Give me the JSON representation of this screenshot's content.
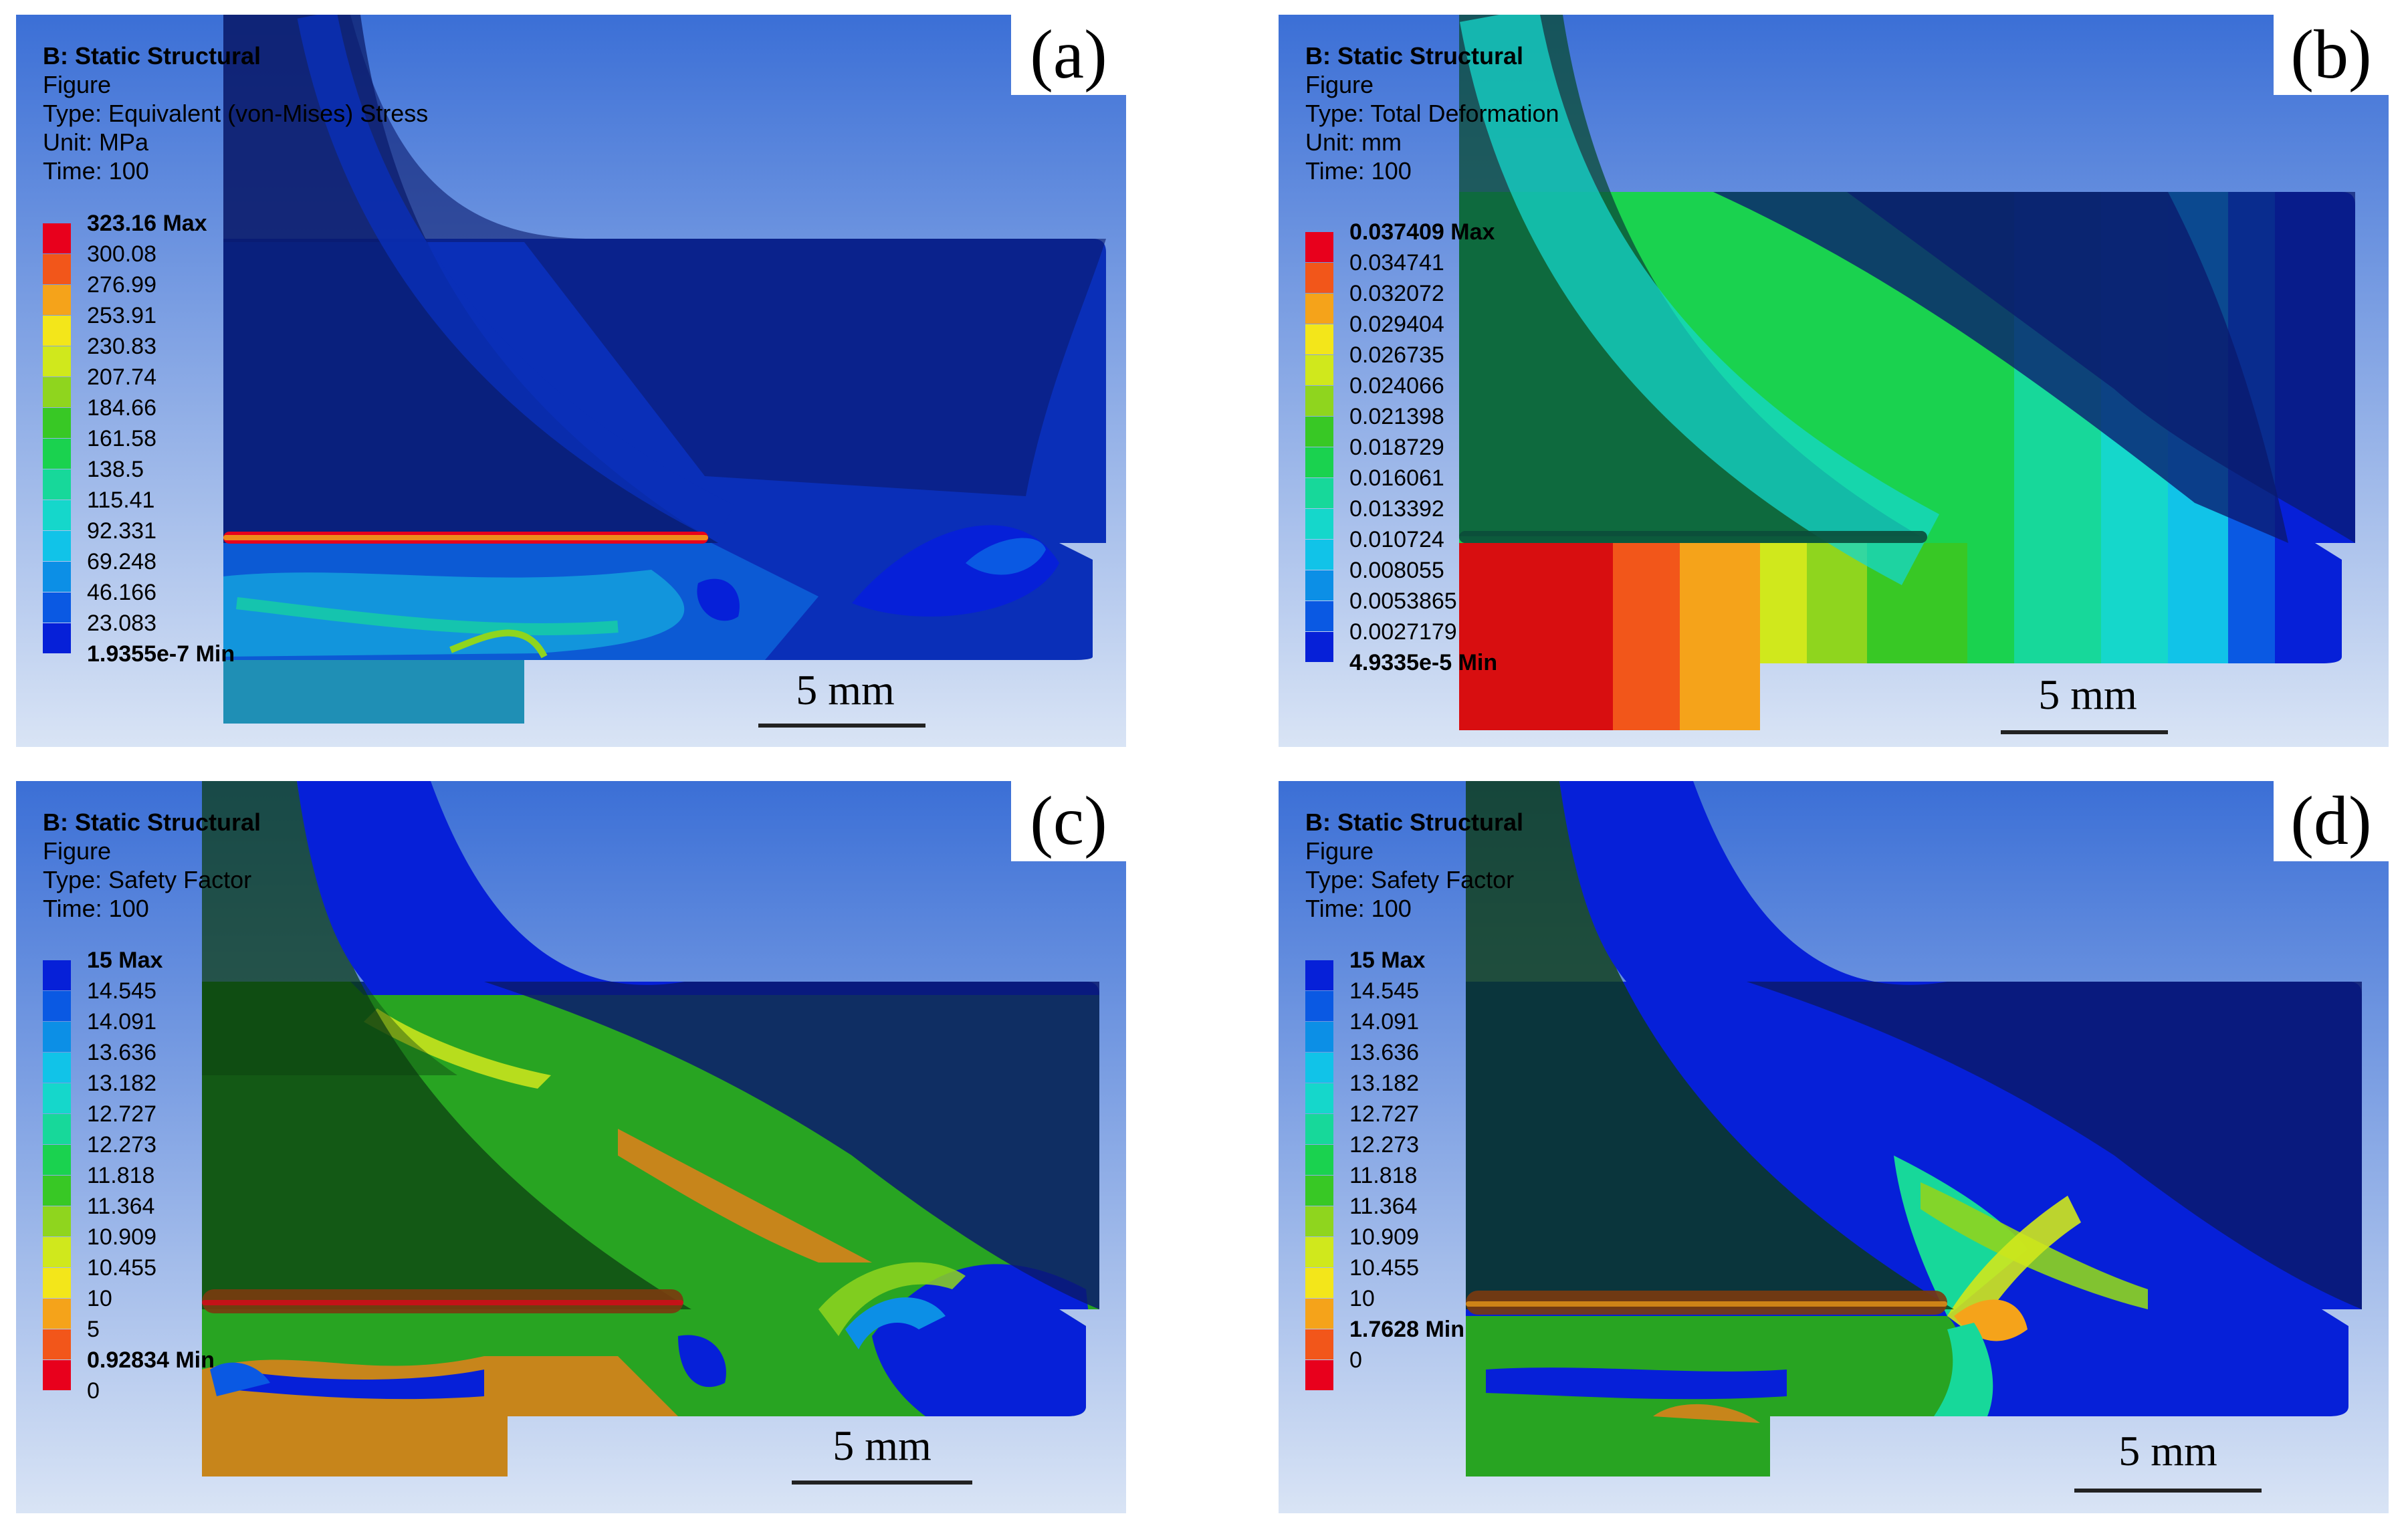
{
  "panels": [
    {
      "id": "a",
      "label": "(a)",
      "system": "B: Static Structural",
      "figure": "Figure",
      "type": "Type: Equivalent (von-Mises) Stress",
      "unit": "Unit: MPa",
      "time": "Time: 100",
      "scale": "5 mm",
      "legend": [
        {
          "text": "323.16 Max",
          "color": "#e8001c"
        },
        {
          "text": "300.08",
          "color": "#f2561a"
        },
        {
          "text": "276.99",
          "color": "#f5a31a"
        },
        {
          "text": "253.91",
          "color": "#f3e61a"
        },
        {
          "text": "230.83",
          "color": "#d0e81c"
        },
        {
          "text": "207.74",
          "color": "#8fd51e"
        },
        {
          "text": "184.66",
          "color": "#38c825"
        },
        {
          "text": "161.58",
          "color": "#1ad24f"
        },
        {
          "text": "138.5",
          "color": "#17d89a"
        },
        {
          "text": "115.41",
          "color": "#15d7cb"
        },
        {
          "text": "92.331",
          "color": "#11c3e8"
        },
        {
          "text": "69.248",
          "color": "#0c8fe6"
        },
        {
          "text": "46.166",
          "color": "#0a59e3"
        },
        {
          "text": "23.083",
          "color": "#0620d8"
        },
        {
          "text": "1.9355e-7 Min",
          "color": null
        }
      ]
    },
    {
      "id": "b",
      "label": "(b)",
      "system": "B: Static Structural",
      "figure": "Figure",
      "type": "Type: Total Deformation",
      "unit": "Unit: mm",
      "time": "Time: 100",
      "scale": "5 mm",
      "legend": [
        {
          "text": "0.037409 Max",
          "color": "#e8001c"
        },
        {
          "text": "0.034741",
          "color": "#f2561a"
        },
        {
          "text": "0.032072",
          "color": "#f5a31a"
        },
        {
          "text": "0.029404",
          "color": "#f3e61a"
        },
        {
          "text": "0.026735",
          "color": "#d0e81c"
        },
        {
          "text": "0.024066",
          "color": "#8fd51e"
        },
        {
          "text": "0.021398",
          "color": "#38c825"
        },
        {
          "text": "0.018729",
          "color": "#1ad24f"
        },
        {
          "text": "0.016061",
          "color": "#17d89a"
        },
        {
          "text": "0.013392",
          "color": "#15d7cb"
        },
        {
          "text": "0.010724",
          "color": "#11c3e8"
        },
        {
          "text": "0.008055",
          "color": "#0c8fe6"
        },
        {
          "text": "0.0053865",
          "color": "#0a59e3"
        },
        {
          "text": "0.0027179",
          "color": "#0620d8"
        },
        {
          "text": "4.9335e-5 Min",
          "color": null
        }
      ]
    },
    {
      "id": "c",
      "label": "(c)",
      "system": "B: Static Structural",
      "figure": "Figure",
      "type": "Type: Safety Factor",
      "time": "Time: 100",
      "scale": "5 mm",
      "legend": [
        {
          "text": "15 Max",
          "color": "#0620d8"
        },
        {
          "text": "14.545",
          "color": "#0a59e3"
        },
        {
          "text": "14.091",
          "color": "#0c8fe6"
        },
        {
          "text": "13.636",
          "color": "#11c3e8"
        },
        {
          "text": "13.182",
          "color": "#15d7cb"
        },
        {
          "text": "12.727",
          "color": "#17d89a"
        },
        {
          "text": "12.273",
          "color": "#1ad24f"
        },
        {
          "text": "11.818",
          "color": "#38c825"
        },
        {
          "text": "11.364",
          "color": "#8fd51e"
        },
        {
          "text": "10.909",
          "color": "#d0e81c"
        },
        {
          "text": "10.455",
          "color": "#f3e61a"
        },
        {
          "text": "10",
          "color": "#f5a31a"
        },
        {
          "text": "5",
          "color": "#f2561a"
        },
        {
          "text": "0.92834 Min",
          "color": "#e8001c"
        },
        {
          "text": "0",
          "color": null
        }
      ]
    },
    {
      "id": "d",
      "label": "(d)",
      "system": "B: Static Structural",
      "figure": "Figure",
      "type": "Type: Safety Factor",
      "time": "Time: 100",
      "scale": "5 mm",
      "legend": [
        {
          "text": "15 Max",
          "color": "#0620d8"
        },
        {
          "text": "14.545",
          "color": "#0a59e3"
        },
        {
          "text": "14.091",
          "color": "#0c8fe6"
        },
        {
          "text": "13.636",
          "color": "#11c3e8"
        },
        {
          "text": "13.182",
          "color": "#15d7cb"
        },
        {
          "text": "12.727",
          "color": "#17d89a"
        },
        {
          "text": "12.273",
          "color": "#1ad24f"
        },
        {
          "text": "11.818",
          "color": "#38c825"
        },
        {
          "text": "11.364",
          "color": "#8fd51e"
        },
        {
          "text": "10.909",
          "color": "#d0e81c"
        },
        {
          "text": "10.455",
          "color": "#f3e61a"
        },
        {
          "text": "10",
          "color": "#f5a31a"
        },
        {
          "text": "1.7628 Min",
          "color": "#f2561a"
        },
        {
          "text": "0",
          "color": "#e8001c"
        }
      ]
    }
  ]
}
